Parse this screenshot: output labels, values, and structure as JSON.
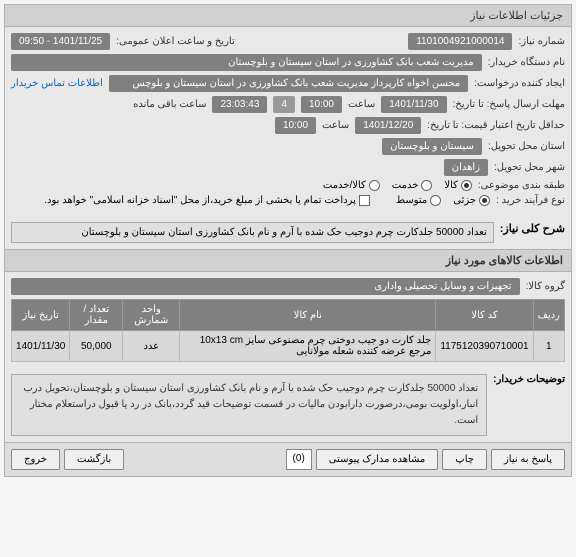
{
  "header": {
    "title": "جزئیات اطلاعات نیاز"
  },
  "fields": {
    "need_number_label": "شماره نیاز:",
    "need_number": "1101004921000014",
    "announce_label": "تاریخ و ساعت اعلان عمومی:",
    "announce_value": "1401/11/25 - 09:50",
    "buyer_org_label": "نام دستگاه خریدار:",
    "buyer_org": "مدیریت شعب بانک کشاورزی در استان سیستان و بلوچستان",
    "requester_label": "ایجاد کننده درخواست:",
    "requester": "محسن اخواه کارپرداز مدیریت شعب بانک کشاورزی در استان سیستان و بلوچس",
    "contact_link": "اطلاعات تماس خریدار",
    "deadline_label": "مهلت ارسال پاسخ: تا تاریخ:",
    "deadline_date": "1401/11/30",
    "deadline_time_label": "ساعت",
    "deadline_time": "10:00",
    "days_label": "",
    "days": "4",
    "remaining_label": "ساعت باقی مانده",
    "remaining_time": "23:03:43",
    "min_validity_label": "حداقل تاریخ اعتبار قیمت: تا تاریخ:",
    "min_validity_date": "1401/12/20",
    "min_validity_time_label": "ساعت",
    "min_validity_time": "10:00",
    "province_label": "استان محل تحویل:",
    "province": "سیستان و بلوچستان",
    "city_label": "شهر محل تحویل:",
    "city": "زاهدان",
    "category_label": "طبقه بندی موضوعی:",
    "cat_goods": "کالا",
    "cat_service": "خدمت",
    "cat_goods_service": "کالا/خدمت",
    "process_label": "نوع فرآیند خرید :",
    "proc_partial": "جزئی",
    "proc_medium": "متوسط",
    "payment_note": "پرداخت تمام یا بخشی از مبلغ خرید،از محل \"اسناد خزانه اسلامی\" خواهد بود."
  },
  "description": {
    "title": "شرح کلی نیاز:",
    "text": "تعداد 50000 جلدکارت چرم دوجیب حک شده با آرم و نام بانک کشاورزی استان سیستان و بلوچستان"
  },
  "items_section": {
    "title": "اطلاعات کالاهای مورد نیاز",
    "group_label": "گروه کالا:",
    "group_value": "تجهیزات و وسایل تحصیلی واداری"
  },
  "table": {
    "headers": {
      "row": "ردیف",
      "code": "کد کالا",
      "name": "نام کالا",
      "unit": "واحد شمارش",
      "qty": "تعداد / مقدار",
      "date": "تاریخ نیاز"
    },
    "rows": [
      {
        "row": "1",
        "code": "1175120390710001",
        "name": "جلد کارت دو جیب دوختی چرم مصنوعی سایز 10x13 cm\nمرجع عرضه کننده شعله مولانایی",
        "unit": "عدد",
        "qty": "50,000",
        "date": "1401/11/30"
      }
    ]
  },
  "buyer_notes": {
    "label": "توضیحات خریدار:",
    "text": "تعداد 50000 جلدکارت چرم دوجیب حک شده با آرم و نام بانک کشاورزی استان سیستان و بلوچستان،تحویل درب انبار،اولویت بومی،درصورت دارابودن مالیات در قسمت توضیحات قید گردد،بانک در رد یا قبول دراستعلام مختار است."
  },
  "buttons": {
    "reply": "پاسخ به نیاز",
    "print": "چاپ",
    "attachments": "مشاهده مدارک پیوستی",
    "attach_count": "(0)",
    "back": "بازگشت",
    "exit": "خروج"
  }
}
